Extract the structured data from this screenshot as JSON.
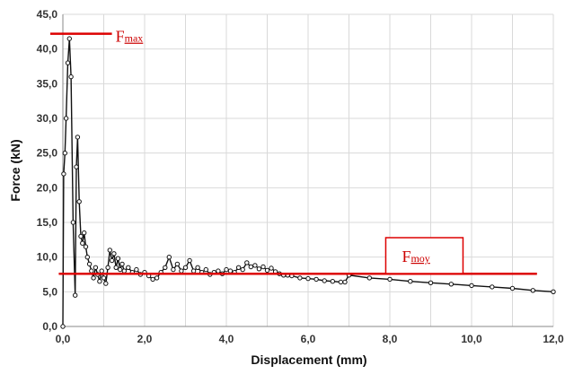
{
  "chart_data": {
    "type": "scatter",
    "xlabel": "Displacement (mm)",
    "ylabel": "Force (kN)",
    "xlim": [
      0,
      12
    ],
    "ylim": [
      0,
      45
    ],
    "x_ticks": [
      "0,0",
      "2,0",
      "4,0",
      "6,0",
      "8,0",
      "10,0",
      "12,0"
    ],
    "y_ticks": [
      "0,0",
      "5,0",
      "10,0",
      "15,0",
      "20,0",
      "25,0",
      "30,0",
      "35,0",
      "40,0",
      "45,0"
    ],
    "grid": true,
    "series": [
      {
        "color": "#111111",
        "marker": "open-circle",
        "x": [
          0.0,
          0.02,
          0.05,
          0.08,
          0.12,
          0.16,
          0.2,
          0.25,
          0.3,
          0.33,
          0.36,
          0.4,
          0.44,
          0.48,
          0.52,
          0.56,
          0.6,
          0.65,
          0.7,
          0.75,
          0.8,
          0.85,
          0.9,
          0.95,
          1.0,
          1.05,
          1.1,
          1.15,
          1.2,
          1.25,
          1.3,
          1.35,
          1.4,
          1.45,
          1.5,
          1.6,
          1.7,
          1.8,
          1.9,
          2.0,
          2.1,
          2.2,
          2.3,
          2.4,
          2.5,
          2.6,
          2.7,
          2.8,
          2.9,
          3.0,
          3.1,
          3.2,
          3.3,
          3.4,
          3.5,
          3.6,
          3.7,
          3.8,
          3.9,
          4.0,
          4.1,
          4.2,
          4.3,
          4.4,
          4.5,
          4.6,
          4.7,
          4.8,
          4.9,
          5.0,
          5.1,
          5.2,
          5.3,
          5.4,
          5.5,
          5.6,
          5.8,
          6.0,
          6.2,
          6.4,
          6.6,
          6.8,
          6.9,
          7.0,
          7.5,
          8.0,
          8.5,
          9.0,
          9.5,
          10.0,
          10.5,
          11.0,
          11.5,
          12.0
        ],
        "y": [
          0.0,
          22.0,
          25.0,
          30.0,
          38.0,
          41.5,
          36.0,
          15.0,
          4.5,
          23.0,
          27.3,
          18.0,
          13.0,
          12.0,
          13.5,
          11.5,
          10.0,
          9.0,
          8.0,
          7.0,
          8.5,
          7.5,
          6.5,
          8.0,
          7.0,
          6.2,
          8.5,
          11.0,
          9.5,
          10.5,
          8.5,
          9.8,
          8.2,
          9.0,
          8.0,
          8.5,
          7.8,
          8.2,
          7.5,
          7.8,
          7.3,
          6.8,
          7.0,
          7.8,
          8.5,
          10.0,
          8.2,
          9.0,
          8.0,
          8.5,
          9.5,
          8.0,
          8.5,
          7.8,
          8.2,
          7.5,
          7.8,
          8.0,
          7.6,
          8.2,
          8.0,
          7.8,
          8.5,
          8.2,
          9.2,
          8.6,
          8.8,
          8.3,
          8.6,
          8.1,
          8.4,
          7.9,
          7.6,
          7.4,
          7.4,
          7.3,
          7.0,
          6.9,
          6.8,
          6.6,
          6.5,
          6.4,
          6.4,
          7.4,
          7.0,
          6.8,
          6.5,
          6.3,
          6.1,
          5.9,
          5.7,
          5.5,
          5.2,
          5.0
        ]
      }
    ],
    "annotations": [
      {
        "label_main": "F",
        "label_sub": "max",
        "y": 42.2,
        "x_start": 0.0,
        "x_end": 1.2,
        "color": "#dd0000"
      },
      {
        "label_main": "F",
        "label_sub": "moy",
        "y": 7.6,
        "x_start": -0.1,
        "x_end": 11.6,
        "color": "#dd0000"
      }
    ]
  }
}
